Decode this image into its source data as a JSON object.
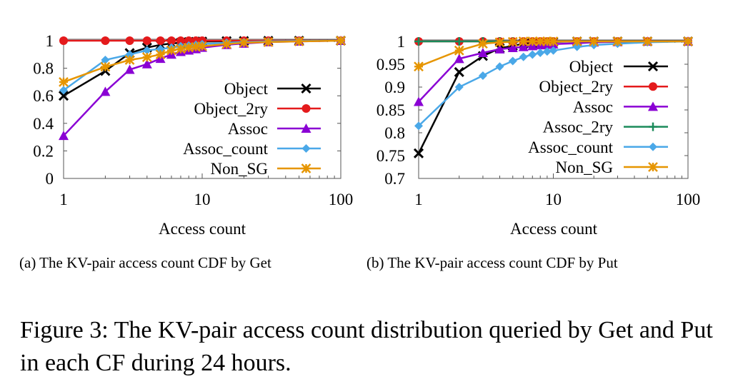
{
  "chart_data": [
    {
      "type": "line",
      "id": "a",
      "xscale": "log",
      "xlim": [
        1,
        100
      ],
      "ylim": [
        0,
        1
      ],
      "xticks": [
        "1",
        "10",
        "100"
      ],
      "yticks": [
        "0",
        "0.2",
        "0.4",
        "0.6",
        "0.8",
        "1"
      ],
      "xlabel": "Access count",
      "ylabel": "",
      "legend_position": "center-right",
      "caption": "(a)  The KV-pair access count CDF by Get",
      "x": [
        1,
        2,
        3,
        4,
        5,
        6,
        7,
        8,
        9,
        10,
        15,
        20,
        30,
        50,
        100
      ],
      "series": [
        {
          "name": "Object",
          "color": "#000000",
          "marker": "x",
          "values": [
            0.6,
            0.78,
            0.91,
            0.95,
            0.97,
            0.98,
            0.985,
            0.99,
            0.992,
            0.994,
            0.997,
            0.998,
            0.999,
            1,
            1
          ]
        },
        {
          "name": "Object_2ry",
          "color": "#e41a1c",
          "marker": "circle",
          "values": [
            1,
            1,
            1,
            1,
            1,
            1,
            1,
            1,
            1,
            1,
            1,
            1,
            1,
            1,
            1
          ]
        },
        {
          "name": "Assoc",
          "color": "#8a00d4",
          "marker": "triangle",
          "values": [
            0.31,
            0.63,
            0.79,
            0.83,
            0.87,
            0.9,
            0.92,
            0.93,
            0.94,
            0.95,
            0.97,
            0.98,
            0.99,
            0.995,
            1
          ]
        },
        {
          "name": "Assoc_count",
          "color": "#4aa8e8",
          "marker": "diamond",
          "values": [
            0.64,
            0.86,
            0.9,
            0.93,
            0.94,
            0.95,
            0.96,
            0.965,
            0.97,
            0.975,
            0.985,
            0.99,
            0.995,
            0.998,
            1
          ]
        },
        {
          "name": "Non_SG",
          "color": "#e69500",
          "marker": "star",
          "values": [
            0.7,
            0.81,
            0.86,
            0.88,
            0.9,
            0.93,
            0.94,
            0.95,
            0.955,
            0.96,
            0.975,
            0.985,
            0.99,
            0.995,
            1
          ]
        }
      ]
    },
    {
      "type": "line",
      "id": "b",
      "xscale": "log",
      "xlim": [
        1,
        100
      ],
      "ylim": [
        0.7,
        1
      ],
      "xticks": [
        "1",
        "10",
        "100"
      ],
      "yticks": [
        "0.7",
        "0.75",
        "0.8",
        "0.85",
        "0.9",
        "0.95",
        "1"
      ],
      "xlabel": "Access count",
      "ylabel": "",
      "legend_position": "center-right",
      "caption": "(b)  The KV-pair access count CDF by Put",
      "x": [
        1,
        2,
        3,
        4,
        5,
        6,
        7,
        8,
        9,
        10,
        15,
        20,
        30,
        50,
        100
      ],
      "series": [
        {
          "name": "Object",
          "color": "#000000",
          "marker": "x",
          "values": [
            0.755,
            0.933,
            0.968,
            0.985,
            0.99,
            0.995,
            0.997,
            0.998,
            0.999,
            0.999,
            1,
            1,
            1,
            1,
            1
          ]
        },
        {
          "name": "Object_2ry",
          "color": "#e41a1c",
          "marker": "circle",
          "values": [
            1,
            1,
            1,
            1,
            1,
            1,
            1,
            1,
            1,
            1,
            1,
            1,
            1,
            1,
            1
          ]
        },
        {
          "name": "Assoc",
          "color": "#8a00d4",
          "marker": "triangle",
          "values": [
            0.868,
            0.962,
            0.975,
            0.983,
            0.986,
            0.988,
            0.99,
            0.992,
            0.993,
            0.994,
            0.996,
            0.998,
            0.999,
            1,
            1
          ]
        },
        {
          "name": "Assoc_2ry",
          "color": "#1a8a5a",
          "marker": "plus",
          "values": [
            1,
            1,
            1,
            1,
            1,
            1,
            1,
            1,
            1,
            1,
            1,
            1,
            1,
            1,
            1
          ]
        },
        {
          "name": "Assoc_count",
          "color": "#4aa8e8",
          "marker": "diamond",
          "values": [
            0.815,
            0.9,
            0.925,
            0.945,
            0.957,
            0.966,
            0.971,
            0.975,
            0.978,
            0.98,
            0.988,
            0.992,
            0.995,
            0.998,
            1
          ]
        },
        {
          "name": "Non_SG",
          "color": "#e69500",
          "marker": "star",
          "values": [
            0.945,
            0.98,
            0.995,
            0.998,
            0.999,
            1,
            1,
            1,
            1,
            1,
            1,
            1,
            1,
            1,
            1
          ]
        }
      ]
    }
  ],
  "figure_caption": "Figure 3: The KV-pair access count distribution queried by Get and Put in each CF during 24 hours."
}
